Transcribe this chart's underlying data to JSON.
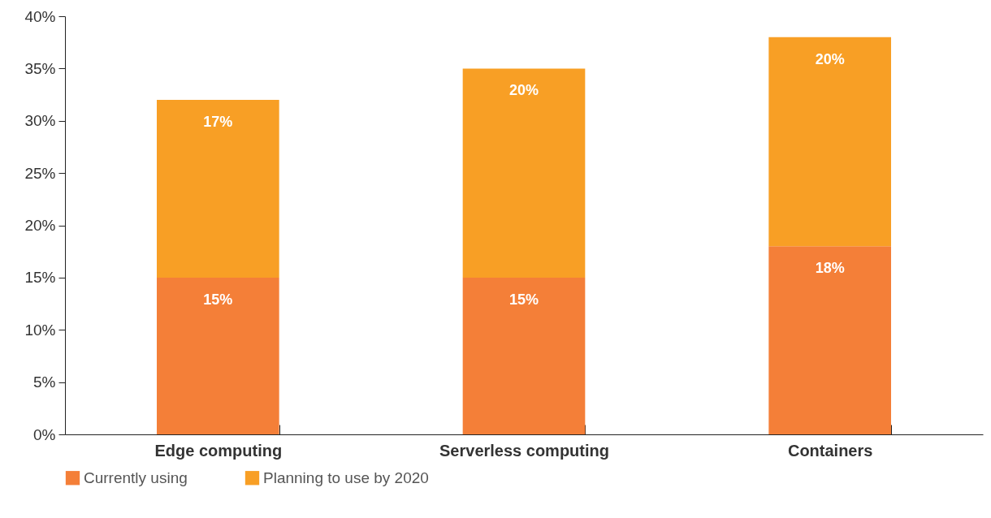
{
  "chart_data": {
    "type": "bar",
    "stacked": true,
    "categories": [
      "Edge computing",
      "Serverless computing",
      "Containers"
    ],
    "series": [
      {
        "name": "Currently using",
        "color": "#f47f38",
        "values": [
          15,
          15,
          18
        ],
        "value_labels": [
          "15%",
          "15%",
          "18%"
        ]
      },
      {
        "name": "Planning to use by 2020",
        "color": "#f89f25",
        "values": [
          17,
          20,
          20
        ],
        "value_labels": [
          "17%",
          "20%",
          "20%"
        ]
      }
    ],
    "ylim": [
      0,
      40
    ],
    "yticks": [
      {
        "value": 0,
        "label": "0%"
      },
      {
        "value": 5,
        "label": "5%"
      },
      {
        "value": 10,
        "label": "10%"
      },
      {
        "value": 15,
        "label": "15%"
      },
      {
        "value": 20,
        "label": "20%"
      },
      {
        "value": 25,
        "label": "25%"
      },
      {
        "value": 30,
        "label": "30%"
      },
      {
        "value": 35,
        "label": "35%"
      },
      {
        "value": 40,
        "label": "40%"
      }
    ],
    "grid": false,
    "legend": "bottom"
  }
}
